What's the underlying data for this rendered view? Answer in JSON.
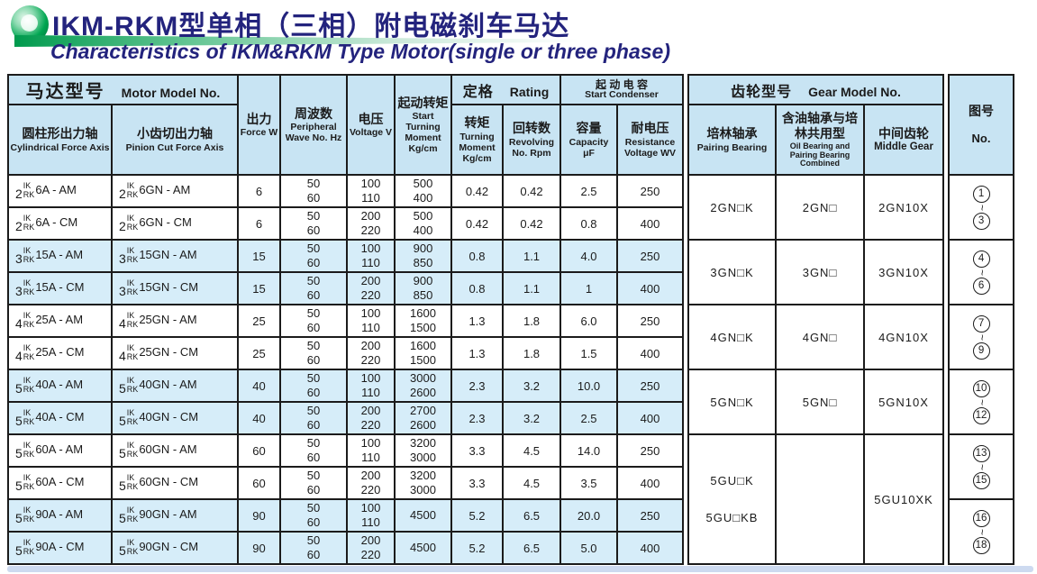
{
  "title": {
    "cn": "IKM-RKM型单相（三相）附电磁刹车马达",
    "en": "Characteristics of IKM&RKM Type Motor(single or three phase)"
  },
  "colors": {
    "navy": "#23237d",
    "brand_green": "#00a651",
    "header_bg": "#c8e4f3",
    "row_blue": "#d6edf9",
    "border": "#1b1b1b",
    "bottom_strip": "#cddaf0"
  },
  "header": {
    "motor_model_cn": "马达型号",
    "motor_model_en": "Motor Model No.",
    "cylindrical_cn": "圆柱形出力轴",
    "cylindrical_en": "Cylindrical Force Axis",
    "pinion_cn": "小齿切出力轴",
    "pinion_en": "Pinion Cut Force Axis",
    "force_cn": "出力",
    "force_en": "Force W",
    "freq_cn": "周波数",
    "freq_en": "Peripheral Wave No. Hz",
    "voltage_cn": "电压",
    "voltage_en": "Voltage V",
    "start_moment_cn": "起动转矩",
    "start_moment_en": "Start Turning Moment Kg/cm",
    "rating_cn": "定格",
    "rating_en": "Rating",
    "torque_cn": "转矩",
    "torque_en": "Turning Moment Kg/cm",
    "revolving_cn": "回转数",
    "revolving_en": "Revolving No. Rpm",
    "condenser_cn": "起 动 电 容",
    "condenser_en": "Start Condenser",
    "capacity_cn": "容量",
    "capacity_en": "Capacity μF",
    "resistance_cn": "耐电压",
    "resistance_en": "Resistance Voltage WV",
    "gear_cn": "齿轮型号",
    "gear_en": "Gear Model No.",
    "pairing_cn": "培林轴承",
    "pairing_en": "Pairing Bearing",
    "oil_cn": "含油轴承与培林共用型",
    "oil_en": "Oil Bearing and Pairing Bearing Combined",
    "middle_cn": "中间齿轮",
    "middle_en": "Middle Gear",
    "no_cn": "图号",
    "no_en": "No.",
    "stack_top": "IK",
    "stack_bottom": "RK"
  },
  "groups": [
    {
      "bg": "white",
      "rows": [
        {
          "cyl_num": "2",
          "cyl_suf": "6A - AM",
          "pin_num": "2",
          "pin_suf": "6GN - AM",
          "force": "6",
          "hz": [
            "50",
            "60"
          ],
          "voltage": [
            "100",
            "110"
          ],
          "moment": [
            "500",
            "400"
          ],
          "torque": "0.42",
          "revolving": "0.42",
          "capacity": "2.5",
          "resistance": "250"
        },
        {
          "cyl_num": "2",
          "cyl_suf": "6A - CM",
          "pin_num": "2",
          "pin_suf": "6GN - CM",
          "force": "6",
          "hz": [
            "50",
            "60"
          ],
          "voltage": [
            "200",
            "220"
          ],
          "moment": [
            "500",
            "400"
          ],
          "torque": "0.42",
          "revolving": "0.42",
          "capacity": "0.8",
          "resistance": "400"
        }
      ],
      "gear": {
        "pairing": [
          "2GN□K"
        ],
        "oil": "2GN□",
        "middle": "2GN10X",
        "span": 2
      },
      "no": {
        "from": "1",
        "to": "3"
      }
    },
    {
      "bg": "blue",
      "rows": [
        {
          "cyl_num": "3",
          "cyl_suf": "15A - AM",
          "pin_num": "3",
          "pin_suf": "15GN - AM",
          "force": "15",
          "hz": [
            "50",
            "60"
          ],
          "voltage": [
            "100",
            "110"
          ],
          "moment": [
            "900",
            "850"
          ],
          "torque": "0.8",
          "revolving": "1.1",
          "capacity": "4.0",
          "resistance": "250"
        },
        {
          "cyl_num": "3",
          "cyl_suf": "15A - CM",
          "pin_num": "3",
          "pin_suf": "15GN - CM",
          "force": "15",
          "hz": [
            "50",
            "60"
          ],
          "voltage": [
            "200",
            "220"
          ],
          "moment": [
            "900",
            "850"
          ],
          "torque": "0.8",
          "revolving": "1.1",
          "capacity": "1",
          "resistance": "400"
        }
      ],
      "gear": {
        "pairing": [
          "3GN□K"
        ],
        "oil": "3GN□",
        "middle": "3GN10X",
        "span": 2
      },
      "no": {
        "from": "4",
        "to": "6"
      }
    },
    {
      "bg": "white",
      "rows": [
        {
          "cyl_num": "4",
          "cyl_suf": "25A - AM",
          "pin_num": "4",
          "pin_suf": "25GN - AM",
          "force": "25",
          "hz": [
            "50",
            "60"
          ],
          "voltage": [
            "100",
            "110"
          ],
          "moment": [
            "1600",
            "1500"
          ],
          "torque": "1.3",
          "revolving": "1.8",
          "capacity": "6.0",
          "resistance": "250"
        },
        {
          "cyl_num": "4",
          "cyl_suf": "25A - CM",
          "pin_num": "4",
          "pin_suf": "25GN - CM",
          "force": "25",
          "hz": [
            "50",
            "60"
          ],
          "voltage": [
            "200",
            "220"
          ],
          "moment": [
            "1600",
            "1500"
          ],
          "torque": "1.3",
          "revolving": "1.8",
          "capacity": "1.5",
          "resistance": "400"
        }
      ],
      "gear": {
        "pairing": [
          "4GN□K"
        ],
        "oil": "4GN□",
        "middle": "4GN10X",
        "span": 2
      },
      "no": {
        "from": "7",
        "to": "9"
      }
    },
    {
      "bg": "blue",
      "rows": [
        {
          "cyl_num": "5",
          "cyl_suf": "40A - AM",
          "pin_num": "5",
          "pin_suf": "40GN - AM",
          "force": "40",
          "hz": [
            "50",
            "60"
          ],
          "voltage": [
            "100",
            "110"
          ],
          "moment": [
            "3000",
            "2600"
          ],
          "torque": "2.3",
          "revolving": "3.2",
          "capacity": "10.0",
          "resistance": "250"
        },
        {
          "cyl_num": "5",
          "cyl_suf": "40A - CM",
          "pin_num": "5",
          "pin_suf": "40GN - CM",
          "force": "40",
          "hz": [
            "50",
            "60"
          ],
          "voltage": [
            "200",
            "220"
          ],
          "moment": [
            "2700",
            "2600"
          ],
          "torque": "2.3",
          "revolving": "3.2",
          "capacity": "2.5",
          "resistance": "400"
        }
      ],
      "gear": {
        "pairing": [
          "5GN□K"
        ],
        "oil": "5GN□",
        "middle": "5GN10X",
        "span": 2
      },
      "no": {
        "from": "10",
        "to": "12"
      }
    },
    {
      "bg": "white",
      "rows": [
        {
          "cyl_num": "5",
          "cyl_suf": "60A - AM",
          "pin_num": "5",
          "pin_suf": "60GN - AM",
          "force": "60",
          "hz": [
            "50",
            "60"
          ],
          "voltage": [
            "100",
            "110"
          ],
          "moment": [
            "3200",
            "3000"
          ],
          "torque": "3.3",
          "revolving": "4.5",
          "capacity": "14.0",
          "resistance": "250"
        },
        {
          "cyl_num": "5",
          "cyl_suf": "60A - CM",
          "pin_num": "5",
          "pin_suf": "60GN - CM",
          "force": "60",
          "hz": [
            "50",
            "60"
          ],
          "voltage": [
            "200",
            "220"
          ],
          "moment": [
            "3200",
            "3000"
          ],
          "torque": "3.3",
          "revolving": "4.5",
          "capacity": "3.5",
          "resistance": "400"
        }
      ],
      "gear": {
        "pairing": [
          "5GU□K",
          "5GU□KB"
        ],
        "oil": "",
        "middle": "5GU10XK",
        "span": 4
      },
      "no": {
        "from": "13",
        "to": "15"
      }
    },
    {
      "bg": "blue",
      "rows": [
        {
          "cyl_num": "5",
          "cyl_suf": "90A - AM",
          "pin_num": "5",
          "pin_suf": "90GN - AM",
          "force": "90",
          "hz": [
            "50",
            "60"
          ],
          "voltage": [
            "100",
            "110"
          ],
          "moment": [
            "4500"
          ],
          "torque": "5.2",
          "revolving": "6.5",
          "capacity": "20.0",
          "resistance": "250"
        },
        {
          "cyl_num": "5",
          "cyl_suf": "90A - CM",
          "pin_num": "5",
          "pin_suf": "90GN - CM",
          "force": "90",
          "hz": [
            "50",
            "60"
          ],
          "voltage": [
            "200",
            "220"
          ],
          "moment": [
            "4500"
          ],
          "torque": "5.2",
          "revolving": "6.5",
          "capacity": "5.0",
          "resistance": "400"
        }
      ],
      "gear": null,
      "no": {
        "from": "16",
        "to": "18"
      }
    }
  ]
}
